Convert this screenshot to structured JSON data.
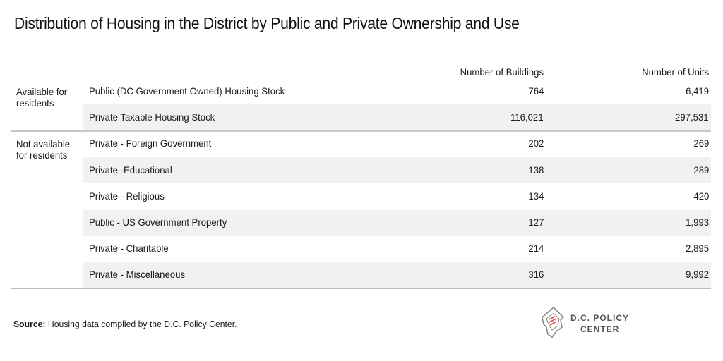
{
  "title": "Distribution of Housing in the District by Public and Private Ownership and Use",
  "columns": {
    "buildings": "Number of Buildings",
    "units": "Number of Units"
  },
  "groups": [
    {
      "label_line1": "Available for",
      "label_line2": "residents"
    },
    {
      "label_line1": "Not available",
      "label_line2": "for residents"
    }
  ],
  "rows": [
    {
      "label": "Public (DC Government Owned) Housing Stock",
      "buildings": "764",
      "units": "6,419"
    },
    {
      "label": "Private Taxable Housing Stock",
      "buildings": "116,021",
      "units": "297,531"
    },
    {
      "label": "Private - Foreign Government",
      "buildings": "202",
      "units": "269"
    },
    {
      "label": "Private -Educational",
      "buildings": "138",
      "units": "289"
    },
    {
      "label": "Private - Religious",
      "buildings": "134",
      "units": "420"
    },
    {
      "label": "Public - US Government Property",
      "buildings": "127",
      "units": "1,993"
    },
    {
      "label": "Private - Charitable",
      "buildings": "214",
      "units": "2,895"
    },
    {
      "label": "Private - Miscellaneous",
      "buildings": "316",
      "units": "9,992"
    }
  ],
  "source": {
    "label": "Source:",
    "text": " Housing data complied by the D.C. Policy Center."
  },
  "logo": {
    "line1": "D.C. POLICY",
    "line2": "CENTER",
    "icon": "dc-map-document-icon"
  },
  "colors": {
    "shade": "#f1f1f1",
    "rule": "#bdbdbd",
    "logo_red": "#e0474c",
    "logo_gray": "#8a8a8a"
  }
}
